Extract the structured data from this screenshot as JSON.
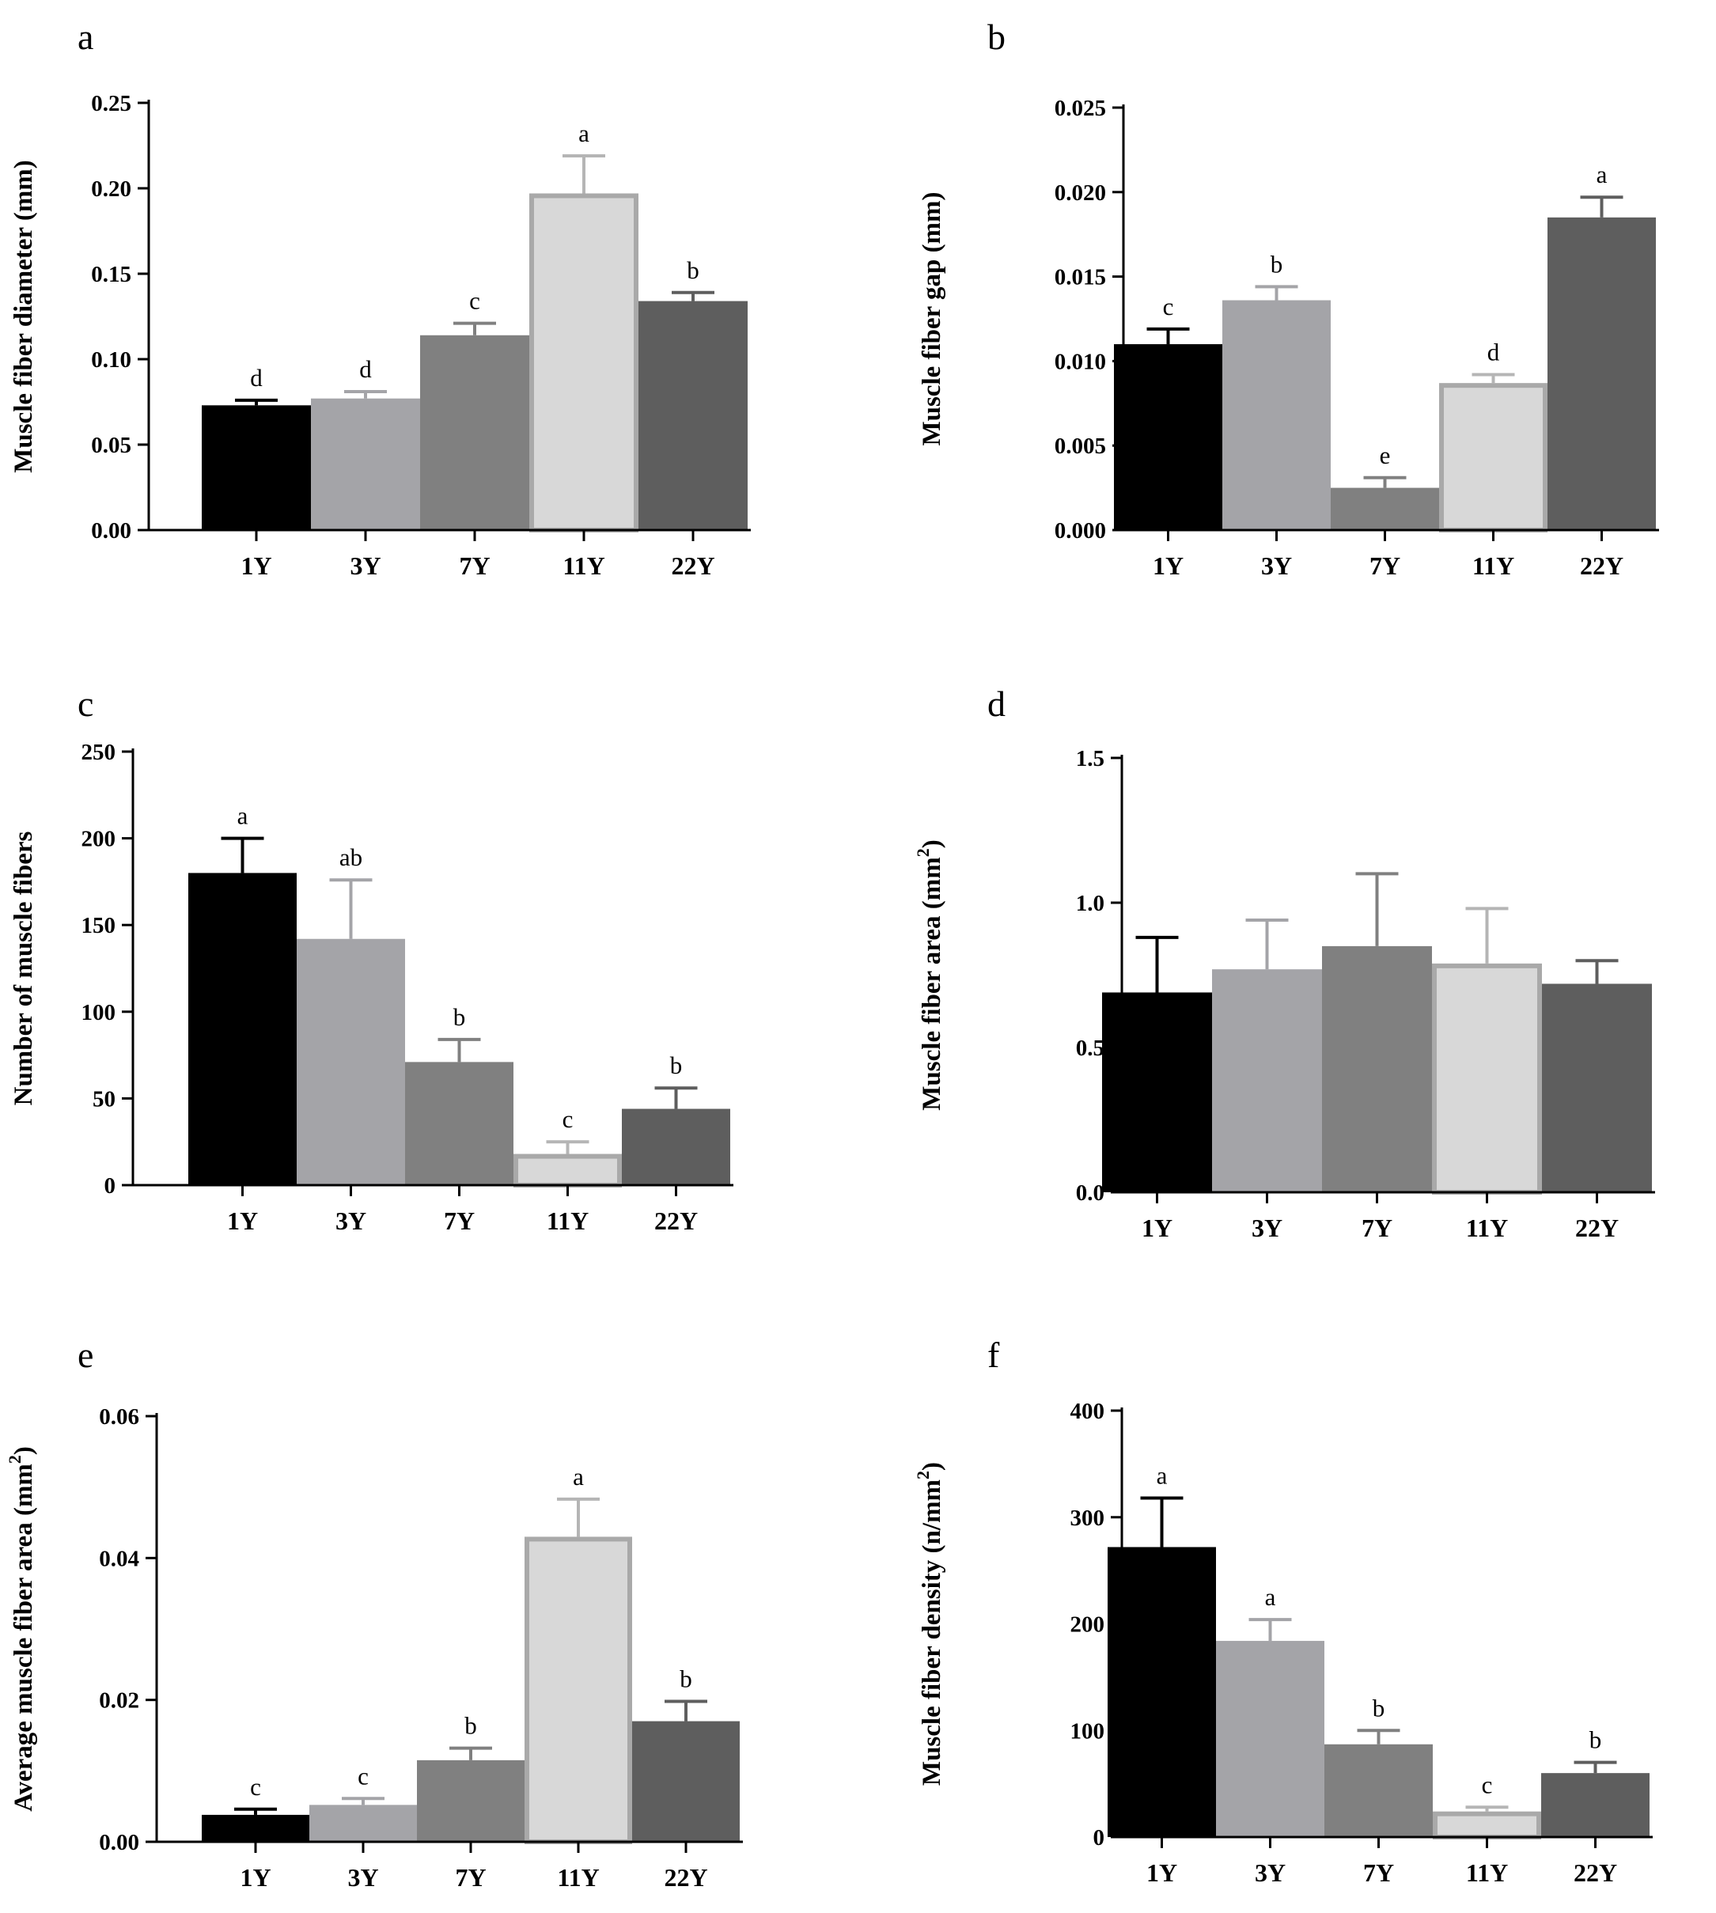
{
  "chart_data": [
    {
      "panel": "a",
      "type": "bar",
      "ylabel": "Muscle fiber diameter (mm)",
      "ylim": [
        0,
        0.25
      ],
      "yticks": [
        "0.00",
        "0.05",
        "0.10",
        "0.15",
        "0.20",
        "0.25"
      ],
      "yticks_values": [
        0,
        0.05,
        0.1,
        0.15,
        0.2,
        0.25
      ],
      "categories": [
        "1Y",
        "3Y",
        "7Y",
        "11Y",
        "22Y"
      ],
      "values": [
        0.073,
        0.077,
        0.114,
        0.197,
        0.134
      ],
      "errors": [
        0.003,
        0.004,
        0.007,
        0.022,
        0.005
      ],
      "sig": [
        "d",
        "d",
        "c",
        "a",
        "b"
      ]
    },
    {
      "panel": "b",
      "type": "bar",
      "ylabel": "Muscle fiber gap (mm)",
      "ylim": [
        0,
        0.025
      ],
      "yticks": [
        "0.000",
        "0.005",
        "0.010",
        "0.015",
        "0.020",
        "0.025"
      ],
      "yticks_values": [
        0,
        0.005,
        0.01,
        0.015,
        0.02,
        0.025
      ],
      "categories": [
        "1Y",
        "3Y",
        "7Y",
        "11Y",
        "22Y"
      ],
      "values": [
        0.011,
        0.0136,
        0.0025,
        0.0087,
        0.0185
      ],
      "errors": [
        0.0009,
        0.0008,
        0.0006,
        0.0005,
        0.0012
      ],
      "sig": [
        "c",
        "b",
        "e",
        "d",
        "a"
      ]
    },
    {
      "panel": "c",
      "type": "bar",
      "ylabel": "Number of muscle fibers",
      "ylim": [
        0,
        250
      ],
      "yticks": [
        "0",
        "50",
        "100",
        "150",
        "200",
        "250"
      ],
      "yticks_values": [
        0,
        50,
        100,
        150,
        200,
        250
      ],
      "categories": [
        "1Y",
        "3Y",
        "7Y",
        "11Y",
        "22Y"
      ],
      "values": [
        180,
        142,
        71,
        18,
        44
      ],
      "errors": [
        20,
        34,
        13,
        7,
        12
      ],
      "sig": [
        "a",
        "ab",
        "b",
        "c",
        "b"
      ]
    },
    {
      "panel": "d",
      "type": "bar",
      "ylabel": "Muscle fiber area (mm",
      "ylabel_sup": "2",
      "ylabel_end": ")",
      "ylim": [
        0,
        1.5
      ],
      "yticks": [
        "0.0",
        "0.5",
        "1.0",
        "1.5"
      ],
      "yticks_values": [
        0,
        0.5,
        1.0,
        1.5
      ],
      "categories": [
        "1Y",
        "3Y",
        "7Y",
        "11Y",
        "22Y"
      ],
      "values": [
        0.69,
        0.77,
        0.85,
        0.79,
        0.72
      ],
      "errors": [
        0.19,
        0.17,
        0.25,
        0.19,
        0.08
      ],
      "sig": [
        "",
        "",
        "",
        "",
        ""
      ]
    },
    {
      "panel": "e",
      "type": "bar",
      "ylabel": "Average muscle fiber area (mm",
      "ylabel_sup": "2",
      "ylabel_end": ")",
      "ylim": [
        0,
        0.06
      ],
      "yticks": [
        "0.00",
        "0.02",
        "0.04",
        "0.06"
      ],
      "yticks_values": [
        0,
        0.02,
        0.04,
        0.06
      ],
      "categories": [
        "1Y",
        "3Y",
        "7Y",
        "11Y",
        "22Y"
      ],
      "values": [
        0.0038,
        0.0052,
        0.0115,
        0.043,
        0.017
      ],
      "errors": [
        0.0008,
        0.0009,
        0.0017,
        0.0053,
        0.0028
      ],
      "sig": [
        "c",
        "c",
        "b",
        "a",
        "b"
      ]
    },
    {
      "panel": "f",
      "type": "bar",
      "ylabel": "Muscle fiber density (n/mm",
      "ylabel_sup": "2",
      "ylabel_end": ")",
      "ylim": [
        0,
        400
      ],
      "yticks": [
        "0",
        "100",
        "200",
        "300",
        "400"
      ],
      "yticks_values": [
        0,
        100,
        200,
        300,
        400
      ],
      "categories": [
        "1Y",
        "3Y",
        "7Y",
        "11Y",
        "22Y"
      ],
      "values": [
        272,
        184,
        87,
        24,
        60
      ],
      "errors": [
        46,
        20,
        13,
        4,
        10
      ],
      "sig": [
        "a",
        "a",
        "b",
        "c",
        "b"
      ]
    }
  ],
  "colors": {
    "bar_fills": [
      "#000000",
      "#a4a4a8",
      "#808080",
      "#d8d8d8",
      "#5e5e5e"
    ],
    "bar_edges": [
      "#000000",
      "#a4a4a8",
      "#808080",
      "#a9a9a9",
      "#5e5e5e"
    ],
    "error_bars": [
      "#000000",
      "#a4a4a8",
      "#808080",
      "#b5b5b5",
      "#5e5e5e"
    ]
  }
}
